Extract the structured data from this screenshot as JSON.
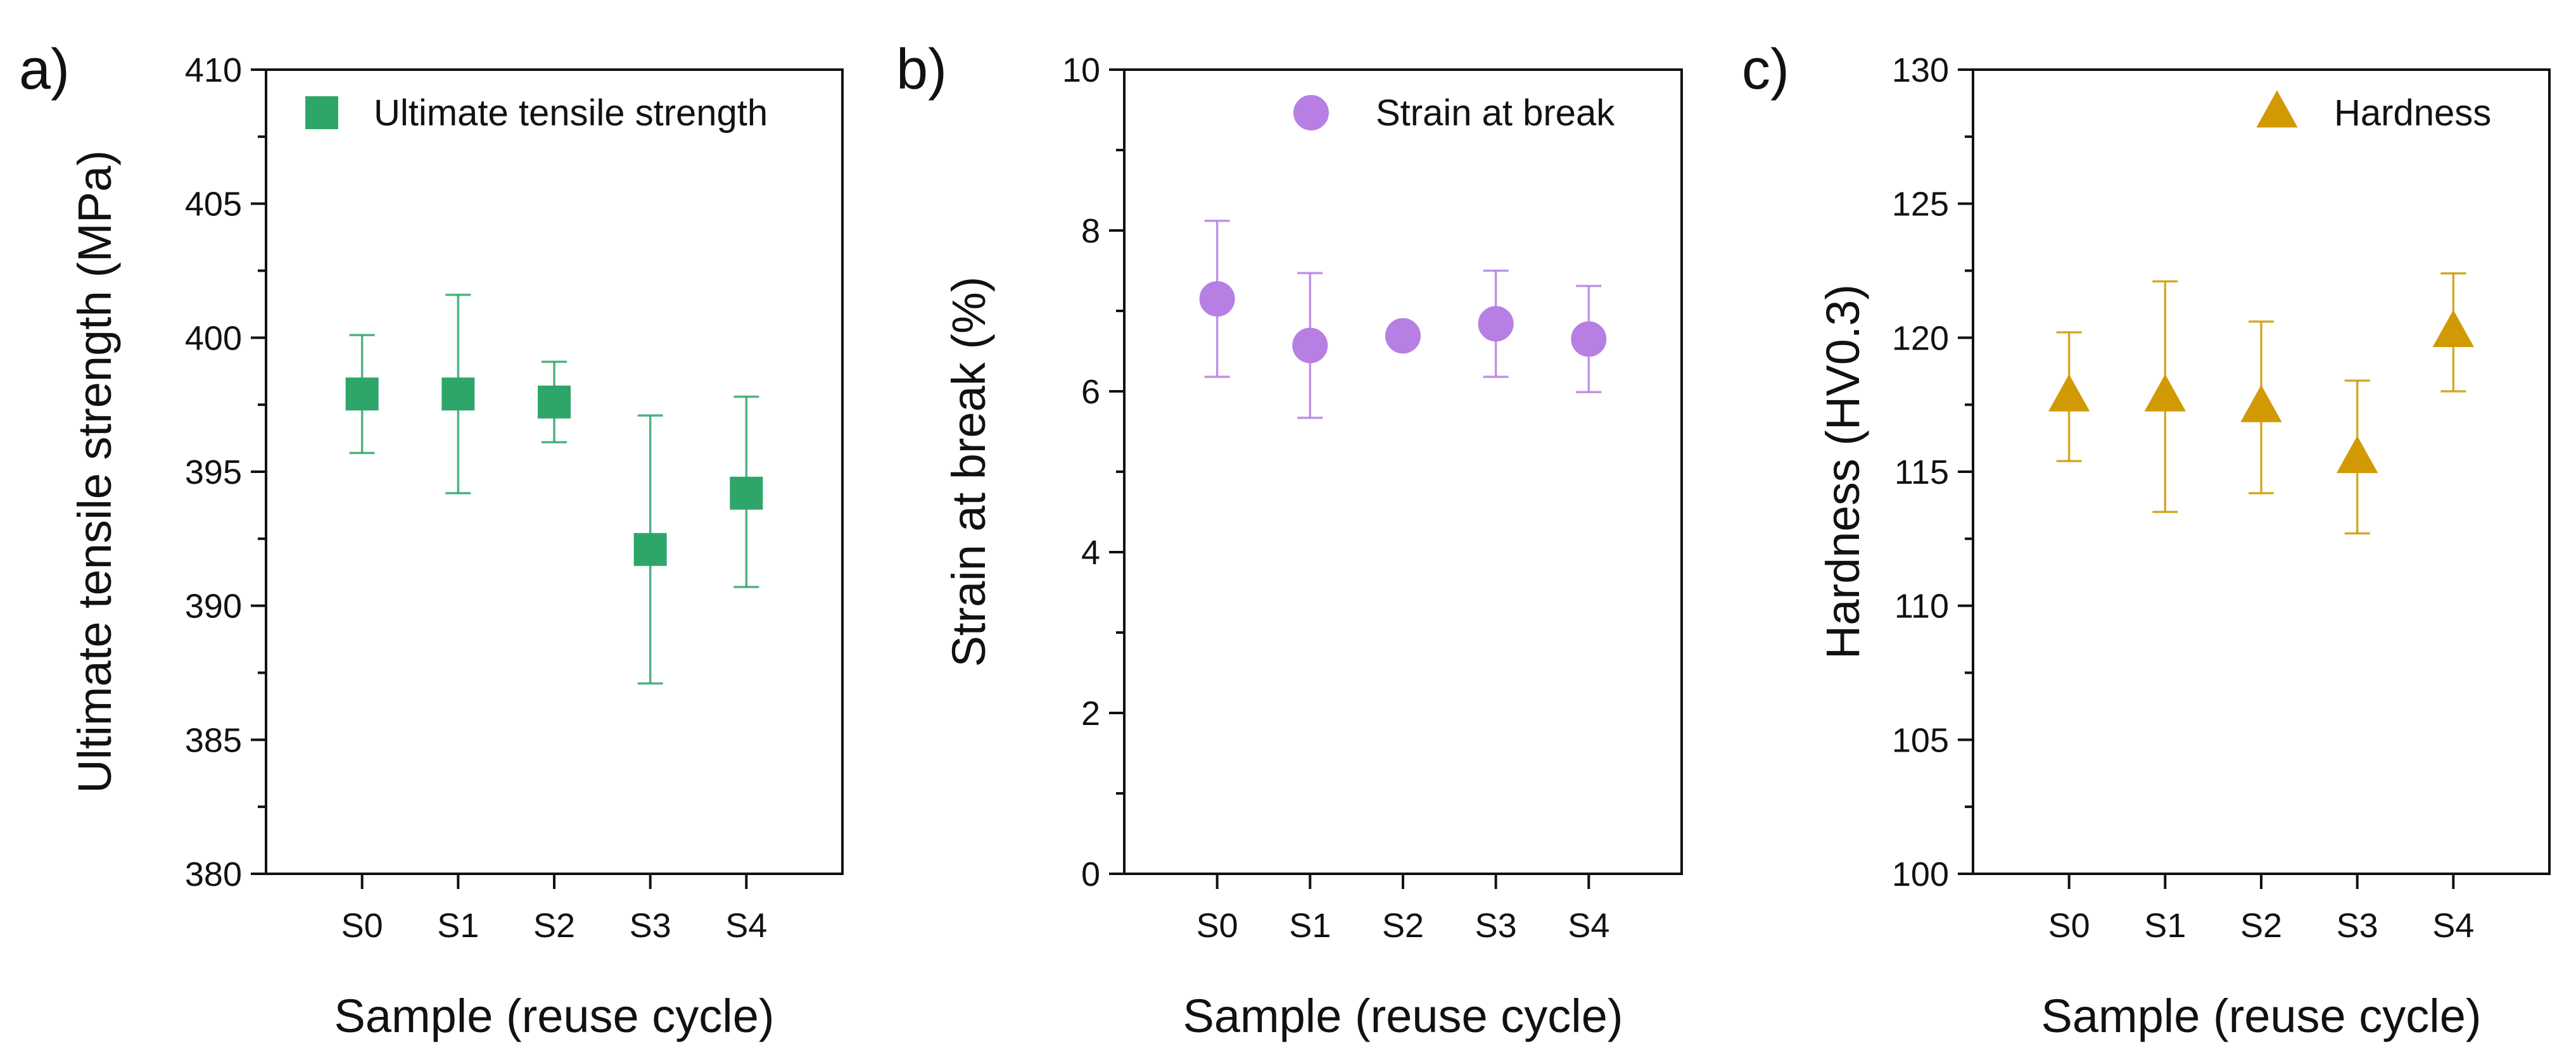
{
  "chart_data": [
    {
      "type": "scatter",
      "panel_label": "a)",
      "xlabel": "Sample (reuse cycle)",
      "ylabel": "Ultimate tensile strength (MPa)",
      "categories": [
        "S0",
        "S1",
        "S2",
        "S3",
        "S4"
      ],
      "ylim": [
        380,
        410
      ],
      "yticks": [
        380,
        385,
        390,
        395,
        400,
        405,
        410
      ],
      "grid": false,
      "legend_position": "top-right",
      "series": [
        {
          "name": "Ultimate tensile strength",
          "marker": "square",
          "color": "#2ea66a",
          "values": [
            397.9,
            397.9,
            397.6,
            392.1,
            394.2
          ],
          "error_low": [
            395.7,
            394.2,
            396.1,
            387.1,
            390.7
          ],
          "error_high": [
            400.1,
            401.6,
            399.1,
            397.1,
            397.8
          ]
        }
      ]
    },
    {
      "type": "scatter",
      "panel_label": "b)",
      "xlabel": "Sample (reuse cycle)",
      "ylabel": "Strain at break (%)",
      "categories": [
        "S0",
        "S1",
        "S2",
        "S3",
        "S4"
      ],
      "ylim": [
        0,
        10
      ],
      "yticks": [
        0,
        2,
        4,
        6,
        8,
        10
      ],
      "grid": false,
      "legend_position": "top-right",
      "series": [
        {
          "name": "Strain at break",
          "marker": "circle",
          "color": "#b77fe3",
          "values": [
            7.15,
            6.57,
            6.69,
            6.84,
            6.65
          ],
          "error_low": [
            6.18,
            5.67,
            6.69,
            6.18,
            5.99
          ],
          "error_high": [
            8.12,
            7.47,
            6.69,
            7.5,
            7.31
          ]
        }
      ]
    },
    {
      "type": "scatter",
      "panel_label": "c)",
      "xlabel": "Sample (reuse cycle)",
      "ylabel": "Hardness (HV0.3)",
      "categories": [
        "S0",
        "S1",
        "S2",
        "S3",
        "S4"
      ],
      "ylim": [
        100,
        130
      ],
      "yticks": [
        100,
        105,
        110,
        115,
        120,
        125,
        130
      ],
      "grid": false,
      "legend_position": "top-right",
      "series": [
        {
          "name": "Hardness",
          "marker": "triangle",
          "color": "#d19a05",
          "values": [
            117.8,
            117.8,
            117.4,
            115.5,
            120.2
          ],
          "error_low": [
            115.4,
            113.5,
            114.2,
            112.7,
            118.0
          ],
          "error_high": [
            120.2,
            122.1,
            120.6,
            118.4,
            122.4
          ]
        }
      ]
    }
  ]
}
